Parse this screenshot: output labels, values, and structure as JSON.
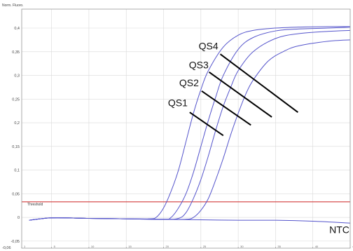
{
  "chart_data": {
    "type": "line",
    "ylabel": "Norm. Fluoro.",
    "xlabel": "",
    "ylim": [
      -0.065,
      0.44
    ],
    "xlim": [
      1,
      45
    ],
    "y_ticks": [
      "0,4",
      "0,35",
      "0,3",
      "0,25",
      "0,2",
      "0,15",
      "0,1",
      "0,05",
      "0",
      "-0,05"
    ],
    "y_tick_values": [
      0.4,
      0.35,
      0.3,
      0.25,
      0.2,
      0.15,
      0.1,
      0.05,
      0,
      -0.05
    ],
    "x_ticks": [
      "1",
      "5",
      "10",
      "15",
      "20",
      "25",
      "30",
      "35",
      "40",
      "45"
    ],
    "x_tick_values": [
      1,
      5,
      10,
      15,
      20,
      25,
      30,
      35,
      40,
      45
    ],
    "bottom_corner_label": "-0,06",
    "grid": true,
    "threshold": {
      "label": "Threshold",
      "value": 0.033,
      "color": "#cc2222"
    },
    "line_color": "#5555cc",
    "series": [
      {
        "name": "QS4",
        "x": [
          2,
          5,
          10,
          15,
          18,
          19,
          20,
          21,
          22,
          23,
          24,
          25,
          26,
          28,
          30,
          32,
          35,
          38,
          42,
          45
        ],
        "y": [
          -0.006,
          -0.001,
          -0.002,
          -0.003,
          -0.003,
          0.0,
          0.02,
          0.055,
          0.1,
          0.16,
          0.22,
          0.27,
          0.31,
          0.36,
          0.385,
          0.395,
          0.4,
          0.402,
          0.403,
          0.403
        ]
      },
      {
        "name": "QS3",
        "x": [
          2,
          5,
          10,
          15,
          20,
          21,
          22,
          23,
          24,
          25,
          26,
          27,
          28,
          30,
          32,
          35,
          38,
          42,
          45
        ],
        "y": [
          -0.006,
          -0.001,
          -0.002,
          -0.003,
          -0.004,
          0.0,
          0.02,
          0.05,
          0.095,
          0.15,
          0.205,
          0.255,
          0.3,
          0.355,
          0.38,
          0.394,
          0.398,
          0.4,
          0.402
        ]
      },
      {
        "name": "QS2",
        "x": [
          2,
          5,
          10,
          15,
          20,
          22,
          23,
          24,
          25,
          26,
          27,
          28,
          29,
          30,
          32,
          35,
          38,
          42,
          45
        ],
        "y": [
          -0.006,
          -0.001,
          -0.002,
          -0.003,
          -0.004,
          -0.002,
          0.01,
          0.04,
          0.08,
          0.13,
          0.185,
          0.235,
          0.275,
          0.31,
          0.35,
          0.378,
          0.388,
          0.393,
          0.395
        ]
      },
      {
        "name": "QS1",
        "x": [
          2,
          5,
          10,
          15,
          20,
          23,
          24,
          25,
          26,
          27,
          28,
          29,
          30,
          31,
          32,
          34,
          36,
          38,
          42,
          45
        ],
        "y": [
          -0.006,
          -0.001,
          -0.002,
          -0.003,
          -0.004,
          -0.004,
          0.0,
          0.015,
          0.04,
          0.08,
          0.125,
          0.175,
          0.22,
          0.26,
          0.29,
          0.33,
          0.35,
          0.362,
          0.372,
          0.375
        ]
      },
      {
        "name": "NTC",
        "x": [
          2,
          5,
          10,
          15,
          20,
          25,
          30,
          35,
          40,
          45
        ],
        "y": [
          -0.006,
          -0.001,
          -0.002,
          -0.003,
          -0.004,
          -0.005,
          -0.006,
          -0.006,
          -0.008,
          -0.012
        ]
      }
    ],
    "annotations": [
      {
        "text": "QS4",
        "series": "QS4",
        "label_x": 24.7,
        "label_y": 0.355,
        "line_from": [
          27.6,
          0.345
        ],
        "line_to": [
          38.0,
          0.222
        ]
      },
      {
        "text": "QS3",
        "series": "QS3",
        "label_x": 23.4,
        "label_y": 0.315,
        "line_from": [
          26.1,
          0.307
        ],
        "line_to": [
          34.5,
          0.212
        ]
      },
      {
        "text": "QS2",
        "series": "QS2",
        "label_x": 22.1,
        "label_y": 0.277,
        "line_from": [
          25.1,
          0.267
        ],
        "line_to": [
          31.7,
          0.195
        ]
      },
      {
        "text": "QS1",
        "series": "QS1",
        "label_x": 20.6,
        "label_y": 0.235,
        "line_from": [
          23.5,
          0.222
        ],
        "line_to": [
          28.0,
          0.173
        ]
      },
      {
        "text": "NTC",
        "series": "NTC",
        "label_x": 42.2,
        "label_y": -0.033
      }
    ]
  }
}
